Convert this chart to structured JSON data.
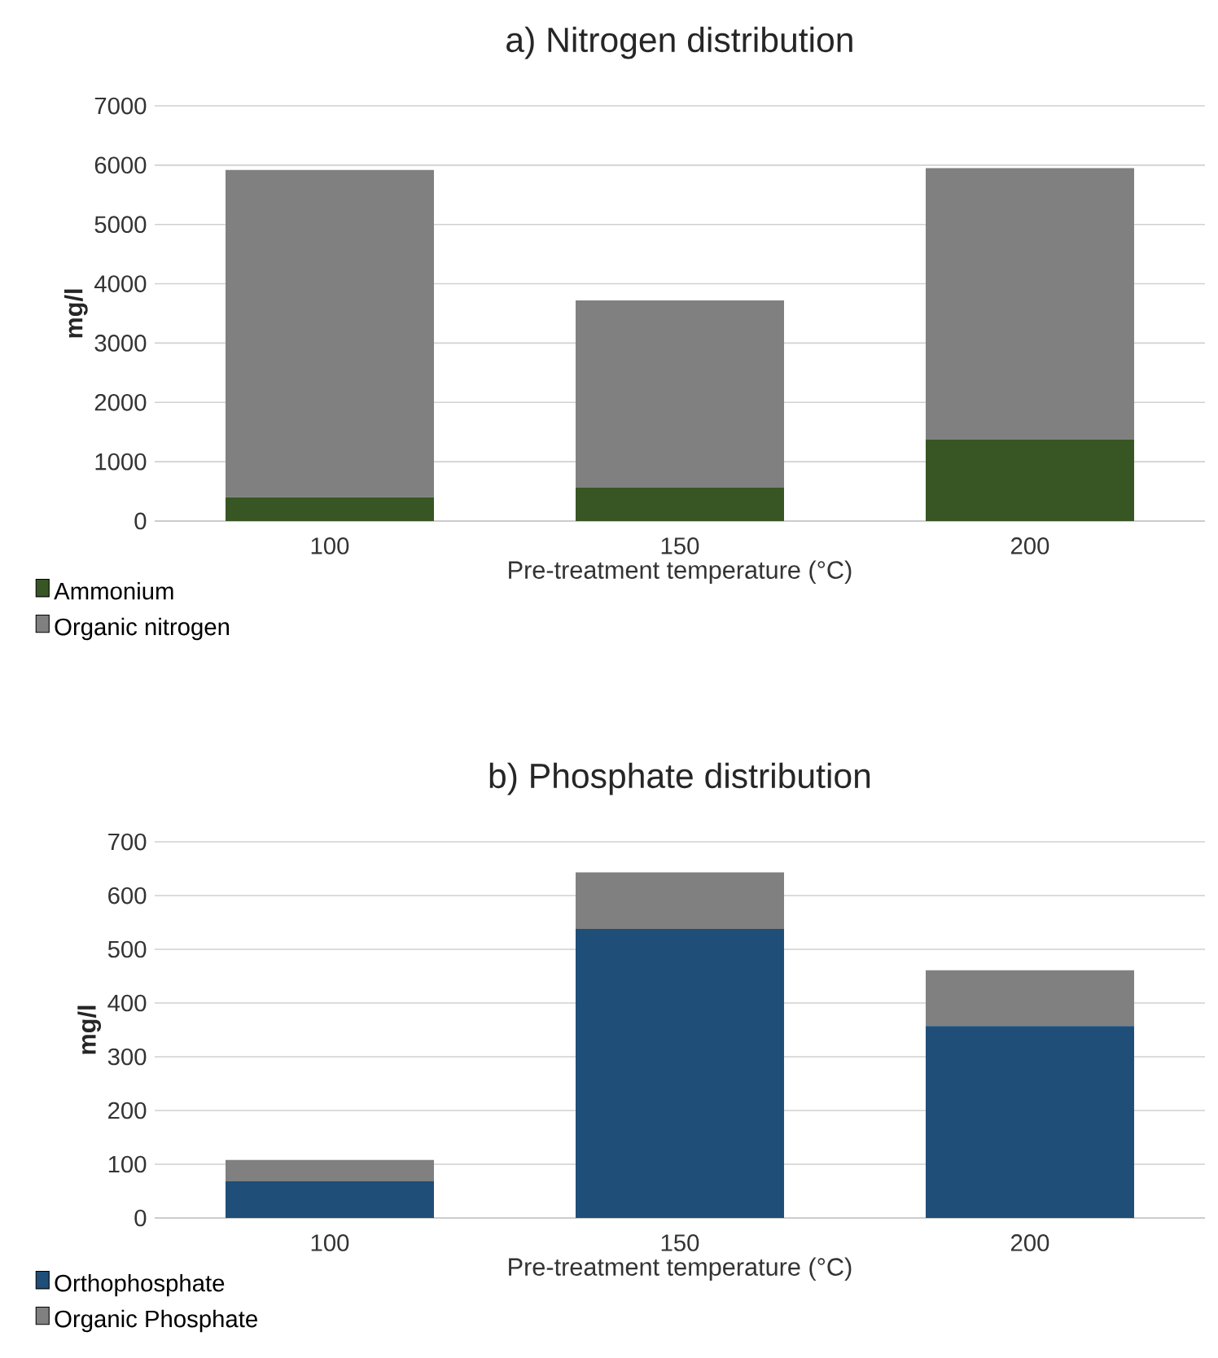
{
  "chart_data": [
    {
      "type": "bar",
      "title": "a) Nitrogen distribution",
      "xlabel": "Pre-treatment temperature (°C)",
      "ylabel": "mg/l",
      "categories": [
        "100",
        "150",
        "200"
      ],
      "stacked": true,
      "series": [
        {
          "name": "Ammonium",
          "color": "#375623",
          "values": [
            400,
            570,
            1380
          ]
        },
        {
          "name": "Organic nitrogen",
          "color": "#808080",
          "values": [
            5520,
            3150,
            4570
          ]
        }
      ],
      "ylim": [
        0,
        7000
      ],
      "yticks": [
        0,
        1000,
        2000,
        3000,
        4000,
        5000,
        6000,
        7000
      ],
      "grid": "y",
      "legend": "bottom left"
    },
    {
      "type": "bar",
      "title": "b) Phosphate distribution",
      "xlabel": "Pre-treatment temperature (°C)",
      "ylabel": "mg/l",
      "categories": [
        "100",
        "150",
        "200"
      ],
      "stacked": true,
      "series": [
        {
          "name": "Orthophosphate",
          "color": "#1f4e79",
          "values": [
            68,
            538,
            357
          ]
        },
        {
          "name": "Organic Phosphate",
          "color": "#808080",
          "values": [
            40,
            105,
            104
          ]
        }
      ],
      "ylim": [
        0,
        700
      ],
      "yticks": [
        0,
        100,
        200,
        300,
        400,
        500,
        600,
        700
      ],
      "grid": "y",
      "legend": "bottom left"
    }
  ]
}
